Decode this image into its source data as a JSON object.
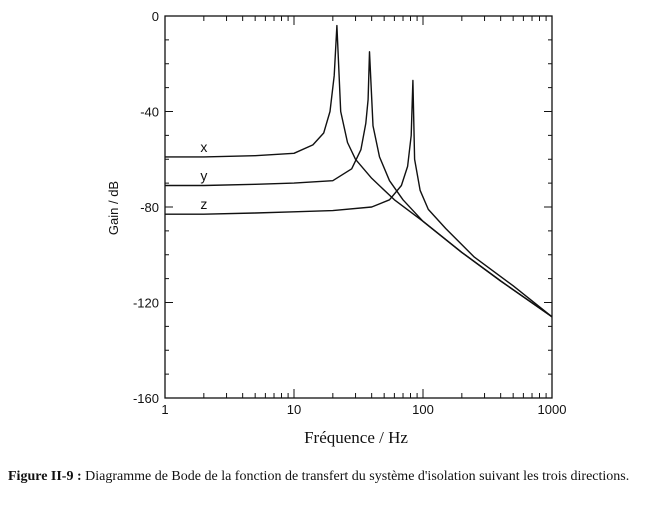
{
  "chart_data": {
    "type": "line",
    "title": "",
    "xlabel": "Fréquence / Hz",
    "ylabel": "Gain / dB",
    "xscale": "log",
    "xlim": [
      1,
      1000
    ],
    "ylim": [
      -160,
      0
    ],
    "xticks": [
      1,
      10,
      100,
      1000
    ],
    "xtick_labels": [
      "1",
      "10",
      "100",
      "1000"
    ],
    "yticks": [
      0,
      -40,
      -80,
      -120,
      -160
    ],
    "ytick_labels": [
      "0",
      "-40",
      "-80",
      "-120",
      "-160"
    ],
    "grid": false,
    "series": [
      {
        "name": "x",
        "color": "#111111",
        "x": [
          1,
          2,
          5,
          10,
          14,
          17,
          19,
          20.5,
          21.5,
          23,
          26,
          30,
          40,
          60,
          100,
          200,
          400,
          1000
        ],
        "y": [
          -59,
          -59,
          -58.5,
          -57.5,
          -54,
          -49,
          -40,
          -25,
          -4,
          -40,
          -53,
          -60,
          -68,
          -77,
          -86,
          -99,
          -111,
          -126
        ]
      },
      {
        "name": "y",
        "color": "#111111",
        "x": [
          1,
          2,
          5,
          10,
          20,
          28,
          33,
          36,
          37.5,
          38.5,
          41,
          46,
          55,
          70,
          100,
          200,
          400,
          1000
        ],
        "y": [
          -71,
          -71,
          -70.5,
          -70,
          -69,
          -64,
          -56,
          -45,
          -35,
          -15,
          -46,
          -59,
          -69,
          -77,
          -86,
          -99,
          -111,
          -126
        ]
      },
      {
        "name": "z",
        "color": "#111111",
        "x": [
          1,
          2,
          5,
          10,
          20,
          40,
          55,
          68,
          76,
          81,
          83.5,
          86,
          95,
          110,
          150,
          250,
          500,
          1000
        ],
        "y": [
          -83,
          -83,
          -82.5,
          -82,
          -81.5,
          -80,
          -77,
          -71,
          -63,
          -50,
          -27,
          -60,
          -73,
          -81,
          -89,
          -101,
          -113,
          -126
        ]
      }
    ]
  },
  "caption": {
    "label": "Figure II-9 :",
    "text": " Diagramme de Bode de la fonction de transfert du système d'isolation suivant les trois directions."
  }
}
